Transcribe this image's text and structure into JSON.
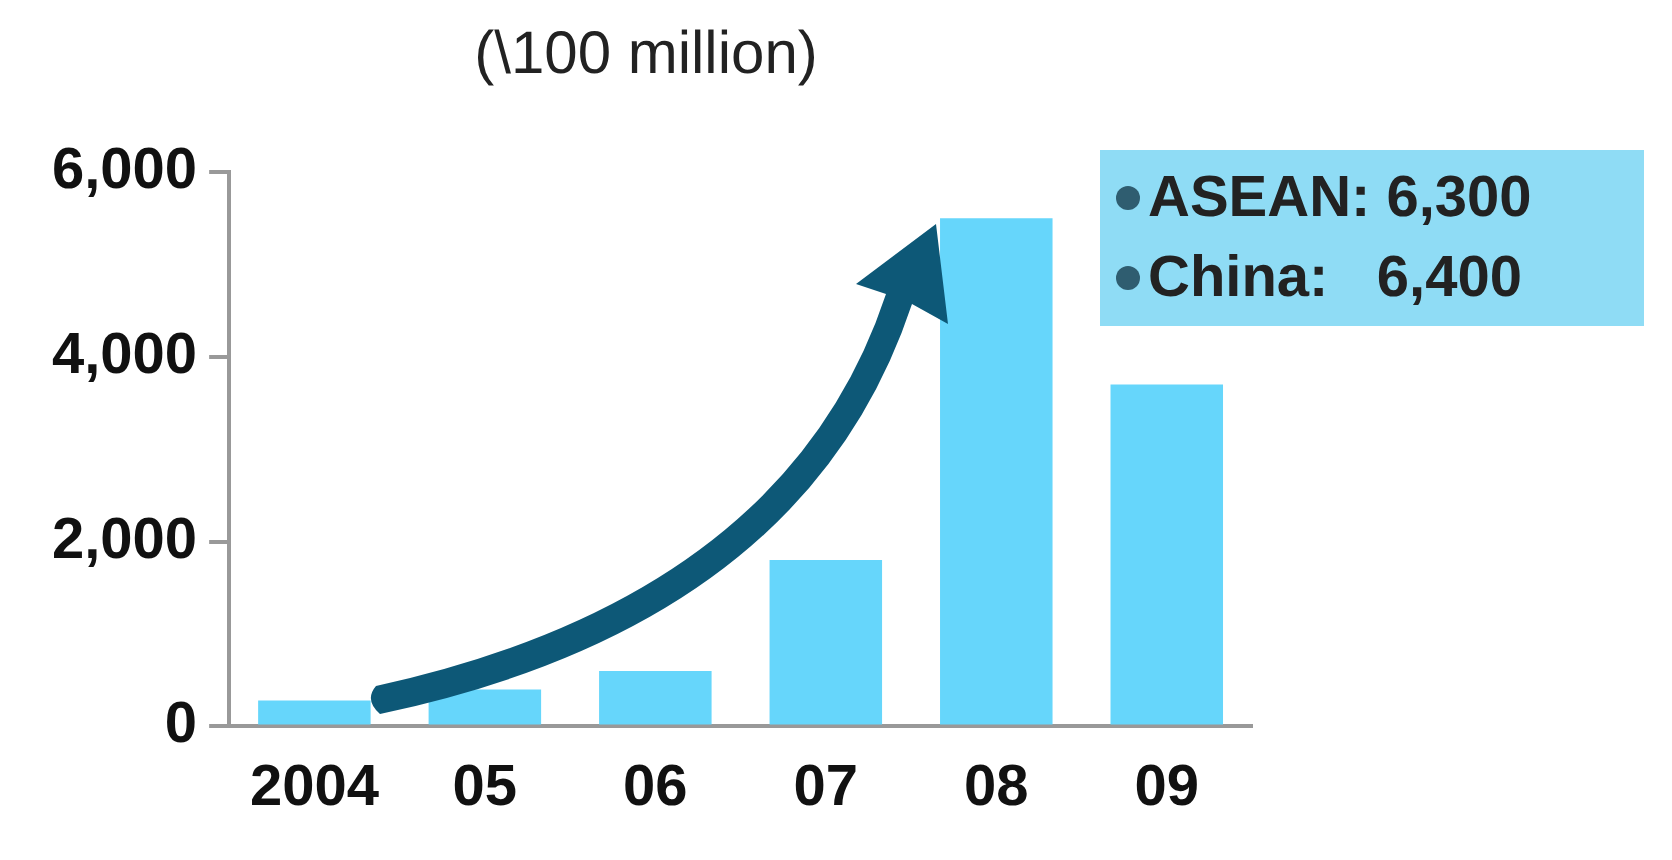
{
  "chart_data": {
    "type": "bar",
    "title": "(\\100 million)",
    "categories": [
      "2004",
      "05",
      "06",
      "07",
      "08",
      "09"
    ],
    "values": [
      280,
      400,
      600,
      1800,
      5500,
      3700
    ],
    "color": "#66d6fb",
    "ylim": [
      0,
      6000
    ],
    "yticks": [
      {
        "value": 0,
        "label": "0"
      },
      {
        "value": 2000,
        "label": "2,000"
      },
      {
        "value": 4000,
        "label": "4,000"
      },
      {
        "value": 6000,
        "label": "6,000"
      }
    ],
    "annotations": [
      "ASEAN: 6,300",
      "China:   6,400"
    ]
  }
}
